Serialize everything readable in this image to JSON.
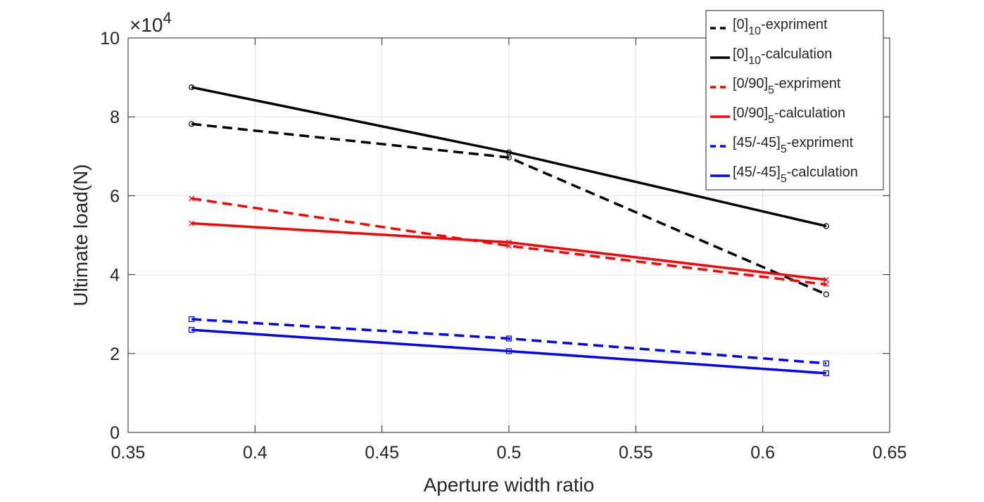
{
  "chart_data": {
    "type": "line",
    "title": "",
    "xlabel": "Aperture width ratio",
    "ylabel": "Ultimate load(N)",
    "y_exponent_label": {
      "prefix": "×10",
      "power": "4"
    },
    "y_multiplier": 10000,
    "xlim": [
      0.35,
      0.65
    ],
    "ylim": [
      0,
      10
    ],
    "x_ticks": [
      "0.35",
      "0.4",
      "0.45",
      "0.5",
      "0.55",
      "0.6",
      "0.65"
    ],
    "y_ticks": [
      "0",
      "2",
      "4",
      "6",
      "8",
      "10"
    ],
    "grid": true,
    "legend_position": "top-right",
    "x": [
      0.375,
      0.5,
      0.625
    ],
    "series": [
      {
        "name": "[0]10-expriment",
        "label_main": "[0]",
        "label_sub": "10",
        "label_tail": "-expriment",
        "values": [
          7.82,
          6.97,
          3.5
        ],
        "color": "#000000",
        "dash": "dashed",
        "marker": "circle"
      },
      {
        "name": "[0]10-calculation",
        "label_main": "[0]",
        "label_sub": "10",
        "label_tail": "-calculation",
        "values": [
          8.75,
          7.1,
          5.23
        ],
        "color": "#000000",
        "dash": "solid",
        "marker": "circle"
      },
      {
        "name": "[0/90]5-expriment",
        "label_main": "[0/90]",
        "label_sub": "5",
        "label_tail": "-expriment",
        "values": [
          5.93,
          4.73,
          3.75
        ],
        "color": "#ff0000",
        "dash": "dashed",
        "marker": "x"
      },
      {
        "name": "[0/90]5-calculation",
        "label_main": "[0/90]",
        "label_sub": "5",
        "label_tail": "-calculation",
        "values": [
          5.3,
          4.82,
          3.87
        ],
        "color": "#ff0000",
        "dash": "solid",
        "marker": "x"
      },
      {
        "name": "[45/-45]5-expriment",
        "label_main": "[45/-45]",
        "label_sub": "5",
        "label_tail": "-expriment",
        "values": [
          2.87,
          2.38,
          1.75
        ],
        "color": "#0000ff",
        "dash": "dashed",
        "marker": "square"
      },
      {
        "name": "[45/-45]5-calculation",
        "label_main": "[45/-45]",
        "label_sub": "5",
        "label_tail": "-calculation",
        "values": [
          2.6,
          2.06,
          1.5
        ],
        "color": "#0000ff",
        "dash": "solid",
        "marker": "square"
      }
    ]
  }
}
